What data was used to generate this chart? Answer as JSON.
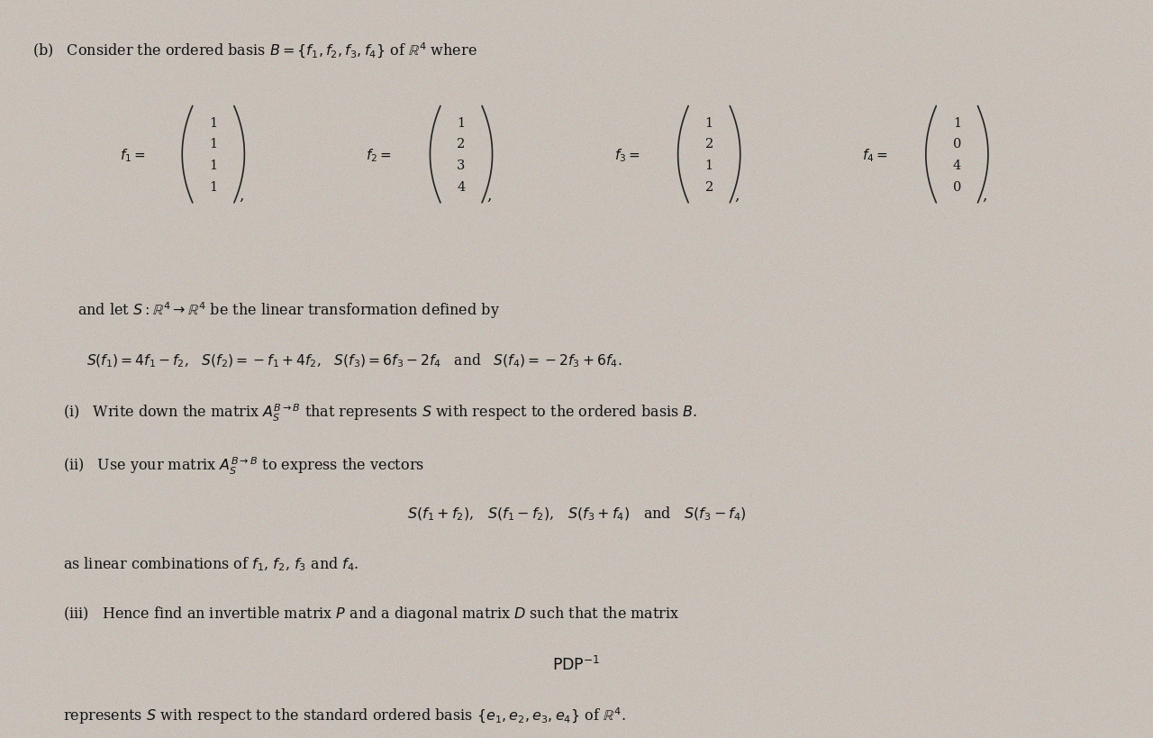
{
  "bg_color": "#c8c0b8",
  "text_color": "#111111",
  "fig_width": 12.8,
  "fig_height": 8.2,
  "f1": [
    "1",
    "1",
    "1",
    "1"
  ],
  "f2": [
    "1",
    "2",
    "3",
    "4"
  ],
  "f3": [
    "1",
    "2",
    "1",
    "2"
  ],
  "f4": [
    "1",
    "0",
    "4",
    "0"
  ]
}
